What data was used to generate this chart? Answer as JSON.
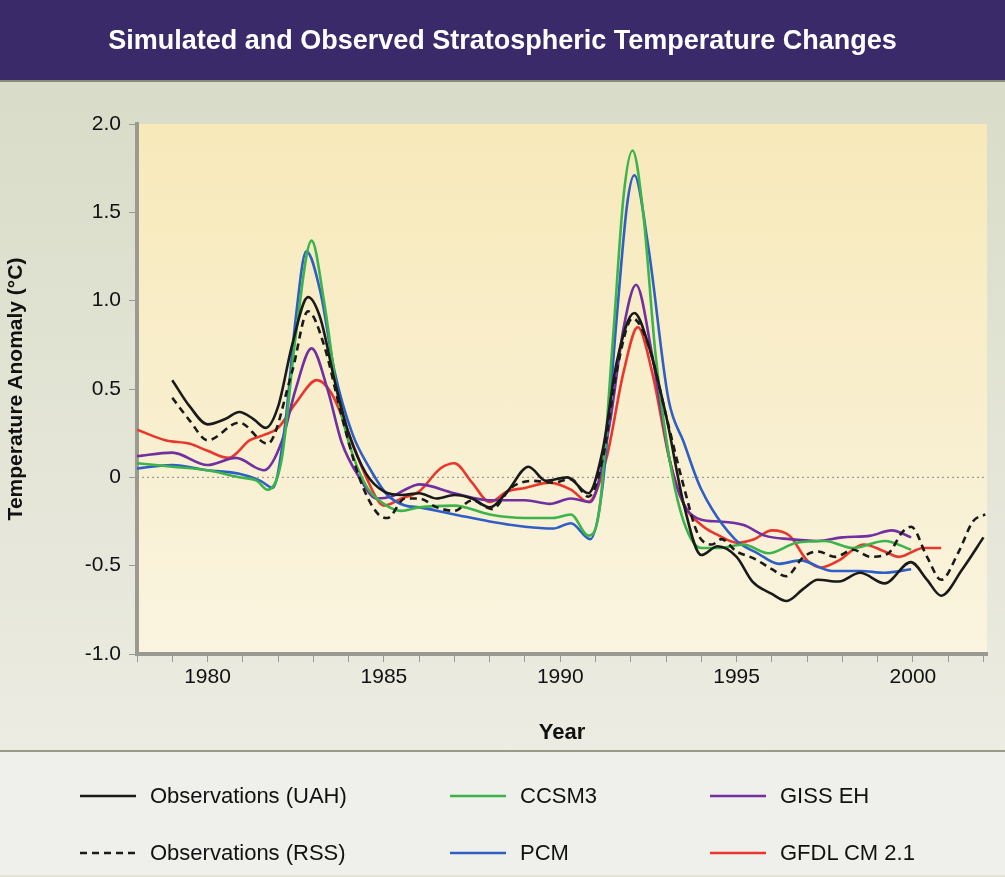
{
  "chart_data": {
    "type": "line",
    "title": "Simulated and Observed Stratospheric Temperature Changes",
    "xlabel": "Year",
    "ylabel": "Temperature Anomaly (°C)",
    "xlim": [
      1978,
      2002.1
    ],
    "ylim": [
      -1.0,
      2.0
    ],
    "xticks": [
      {
        "value": 1978,
        "label": null
      },
      {
        "value": 1979,
        "label": null
      },
      1980,
      {
        "value": 1981,
        "label": null
      },
      {
        "value": 1982,
        "label": null
      },
      {
        "value": 1983,
        "label": null
      },
      {
        "value": 1984,
        "label": null
      },
      1985,
      {
        "value": 1986,
        "label": null
      },
      {
        "value": 1987,
        "label": null
      },
      {
        "value": 1988,
        "label": null
      },
      {
        "value": 1989,
        "label": null
      },
      1990,
      {
        "value": 1991,
        "label": null
      },
      {
        "value": 1992,
        "label": null
      },
      {
        "value": 1993,
        "label": null
      },
      {
        "value": 1994,
        "label": null
      },
      1995,
      {
        "value": 1996,
        "label": null
      },
      {
        "value": 1997,
        "label": null
      },
      {
        "value": 1998,
        "label": null
      },
      {
        "value": 1999,
        "label": null
      },
      2000,
      {
        "value": 2001,
        "label": null
      },
      {
        "value": 2002,
        "label": null
      }
    ],
    "yticks": [
      {
        "value": -1.0,
        "label": "-1.0"
      },
      {
        "value": -0.5,
        "label": "-0.5"
      },
      0,
      {
        "value": 0.5,
        "label": "0.5"
      },
      {
        "value": 1.0,
        "label": "1.0"
      },
      {
        "value": 1.5,
        "label": "1.5"
      },
      {
        "value": 2.0,
        "label": "2.0"
      }
    ],
    "grid": false,
    "legend": "bottom",
    "marker": "none",
    "ref_lines": [
      {
        "axis": "y",
        "value": 0,
        "color": "#888888",
        "line_style": "dotted"
      }
    ],
    "series": [
      {
        "name": "Observations (UAH)",
        "color": "#1a1a1a",
        "line_style": "solid",
        "x": [
          1979.0,
          1979.5,
          1980.0,
          1980.5,
          1980.9,
          1981.3,
          1981.65,
          1982.0,
          1982.4,
          1982.85,
          1983.2,
          1983.6,
          1984.0,
          1984.5,
          1985.0,
          1985.5,
          1986.0,
          1986.5,
          1987.0,
          1987.5,
          1988.0,
          1988.5,
          1989.1,
          1989.6,
          1990.2,
          1990.8,
          1991.2,
          1991.6,
          1992.1,
          1992.5,
          1993.0,
          1993.5,
          1994.0,
          1994.46,
          1995.0,
          1995.45,
          1996.0,
          1996.42,
          1996.9,
          1997.3,
          1997.9,
          1998.5,
          1999.2,
          1999.94,
          2000.4,
          2000.8,
          2001.4,
          2002.0
        ],
        "values": [
          0.55,
          0.4,
          0.3,
          0.33,
          0.37,
          0.33,
          0.28,
          0.4,
          0.75,
          1.02,
          0.9,
          0.55,
          0.25,
          0.02,
          -0.08,
          -0.1,
          -0.09,
          -0.12,
          -0.1,
          -0.12,
          -0.17,
          -0.08,
          0.06,
          -0.02,
          0.0,
          -0.09,
          0.15,
          0.65,
          0.93,
          0.75,
          0.35,
          -0.15,
          -0.44,
          -0.39,
          -0.45,
          -0.59,
          -0.66,
          -0.7,
          -0.63,
          -0.58,
          -0.59,
          -0.54,
          -0.6,
          -0.48,
          -0.58,
          -0.67,
          -0.52,
          -0.34
        ]
      },
      {
        "name": "Observations (RSS)",
        "color": "#1a1a1a",
        "line_style": "dashed",
        "x": [
          1979.0,
          1979.5,
          1980.0,
          1980.9,
          1981.7,
          1982.4,
          1982.85,
          1983.3,
          1983.8,
          1984.3,
          1984.8,
          1985.1,
          1985.6,
          1986.0,
          1986.5,
          1987.0,
          1987.5,
          1988.07,
          1988.6,
          1989.2,
          1989.8,
          1990.3,
          1990.8,
          1991.2,
          1991.6,
          1992.05,
          1992.5,
          1993.0,
          1993.5,
          1993.9,
          1994.3,
          1994.57,
          1995.0,
          1995.5,
          1996.0,
          1996.4,
          1996.9,
          1997.3,
          1997.8,
          1998.3,
          1998.8,
          1999.3,
          1999.7,
          1999.95,
          2000.4,
          2000.8,
          2001.3,
          2001.7,
          2002.05
        ],
        "values": [
          0.45,
          0.32,
          0.21,
          0.31,
          0.19,
          0.6,
          0.94,
          0.75,
          0.35,
          0.0,
          -0.2,
          -0.23,
          -0.12,
          -0.12,
          -0.17,
          -0.19,
          -0.13,
          -0.18,
          -0.06,
          -0.02,
          -0.03,
          -0.01,
          -0.11,
          0.1,
          0.6,
          0.9,
          0.75,
          0.35,
          -0.05,
          -0.32,
          -0.38,
          -0.35,
          -0.42,
          -0.46,
          -0.52,
          -0.56,
          -0.45,
          -0.42,
          -0.45,
          -0.41,
          -0.45,
          -0.43,
          -0.31,
          -0.28,
          -0.45,
          -0.58,
          -0.42,
          -0.25,
          -0.21
        ]
      },
      {
        "name": "CCSM3",
        "color": "#3cb44b",
        "line_style": "solid",
        "x": [
          1978.0,
          1979.0,
          1980.0,
          1980.9,
          1981.4,
          1981.7,
          1982.1,
          1982.5,
          1982.95,
          1983.3,
          1983.7,
          1984.0,
          1984.5,
          1985.0,
          1985.5,
          1986.0,
          1987.0,
          1988.0,
          1989.0,
          1989.8,
          1990.3,
          1990.8,
          1991.1,
          1991.5,
          1991.8,
          1992.05,
          1992.35,
          1992.7,
          1993.1,
          1993.5,
          1994.0,
          1994.5,
          1995.2,
          1995.9,
          1996.7,
          1997.5,
          1998.3,
          1999.2,
          1999.95
        ],
        "values": [
          0.08,
          0.06,
          0.04,
          0.0,
          -0.02,
          -0.07,
          0.1,
          0.8,
          1.34,
          1.0,
          0.45,
          0.2,
          -0.05,
          -0.15,
          -0.19,
          -0.17,
          -0.16,
          -0.21,
          -0.23,
          -0.23,
          -0.21,
          -0.33,
          -0.2,
          0.8,
          1.6,
          1.85,
          1.5,
          0.7,
          0.1,
          -0.25,
          -0.4,
          -0.4,
          -0.38,
          -0.43,
          -0.37,
          -0.36,
          -0.4,
          -0.36,
          -0.41
        ]
      },
      {
        "name": "PCM",
        "color": "#2f5fc4",
        "line_style": "solid",
        "x": [
          1978.0,
          1979.0,
          1980.0,
          1980.9,
          1981.5,
          1981.85,
          1982.2,
          1982.5,
          1982.8,
          1983.2,
          1983.6,
          1984.1,
          1984.6,
          1985.1,
          1985.6,
          1986.0,
          1987.0,
          1988.0,
          1989.0,
          1989.8,
          1990.3,
          1990.85,
          1991.2,
          1991.6,
          1991.9,
          1992.1,
          1992.5,
          1993.07,
          1993.5,
          1993.98,
          1994.95,
          1995.6,
          1996.2,
          1996.8,
          1997.7,
          1998.5,
          1999.2,
          1999.95
        ],
        "values": [
          0.05,
          0.07,
          0.04,
          0.02,
          -0.02,
          -0.06,
          0.3,
          0.9,
          1.28,
          1.05,
          0.6,
          0.25,
          0.05,
          -0.1,
          -0.16,
          -0.17,
          -0.21,
          -0.25,
          -0.28,
          -0.29,
          -0.26,
          -0.35,
          -0.05,
          0.9,
          1.55,
          1.71,
          1.3,
          0.44,
          0.2,
          -0.06,
          -0.35,
          -0.43,
          -0.49,
          -0.47,
          -0.53,
          -0.53,
          -0.54,
          -0.52
        ]
      },
      {
        "name": "GISS EH",
        "color": "#7030a0",
        "line_style": "solid",
        "x": [
          1978.0,
          1979.0,
          1980.0,
          1980.8,
          1981.6,
          1982.1,
          1982.5,
          1982.95,
          1983.4,
          1983.8,
          1984.3,
          1984.8,
          1985.2,
          1985.7,
          1986.0,
          1987.0,
          1988.0,
          1989.0,
          1989.7,
          1990.3,
          1990.85,
          1991.4,
          1991.8,
          1992.15,
          1992.6,
          1993.1,
          1993.5,
          1994.0,
          1994.5,
          1995.2,
          1995.8,
          1996.5,
          1997.3,
          1998.0,
          1998.8,
          1999.4,
          1999.95
        ],
        "values": [
          0.12,
          0.14,
          0.07,
          0.11,
          0.04,
          0.2,
          0.5,
          0.73,
          0.5,
          0.2,
          0.0,
          -0.12,
          -0.11,
          -0.06,
          -0.04,
          -0.09,
          -0.13,
          -0.13,
          -0.15,
          -0.12,
          -0.14,
          0.3,
          0.85,
          1.09,
          0.7,
          0.1,
          -0.15,
          -0.24,
          -0.25,
          -0.27,
          -0.33,
          -0.35,
          -0.36,
          -0.34,
          -0.33,
          -0.3,
          -0.34
        ]
      },
      {
        "name": "GFDL CM 2.1",
        "color": "#e8372c",
        "line_style": "solid",
        "x": [
          1978.0,
          1978.8,
          1979.5,
          1980.0,
          1980.6,
          1981.2,
          1981.6,
          1982.0,
          1982.5,
          1983.1,
          1983.5,
          1984.0,
          1984.5,
          1985.0,
          1985.5,
          1986.0,
          1986.6,
          1987.0,
          1987.5,
          1988.0,
          1988.5,
          1989.0,
          1989.7,
          1990.3,
          1990.8,
          1991.3,
          1991.8,
          1992.2,
          1992.6,
          1993.1,
          1993.5,
          1994.0,
          1994.5,
          1995.0,
          1995.5,
          1996.0,
          1996.5,
          1997.0,
          1997.4,
          1997.9,
          1998.6,
          1999.2,
          1999.6,
          2000.3,
          2000.8
        ],
        "values": [
          0.27,
          0.21,
          0.19,
          0.15,
          0.11,
          0.21,
          0.24,
          0.28,
          0.42,
          0.55,
          0.48,
          0.25,
          0.0,
          -0.16,
          -0.12,
          -0.08,
          0.05,
          0.08,
          -0.03,
          -0.14,
          -0.08,
          -0.06,
          -0.03,
          -0.07,
          -0.14,
          0.1,
          0.6,
          0.85,
          0.6,
          0.1,
          -0.15,
          -0.27,
          -0.33,
          -0.37,
          -0.35,
          -0.3,
          -0.33,
          -0.47,
          -0.51,
          -0.47,
          -0.38,
          -0.42,
          -0.45,
          -0.4,
          -0.4
        ]
      }
    ]
  }
}
